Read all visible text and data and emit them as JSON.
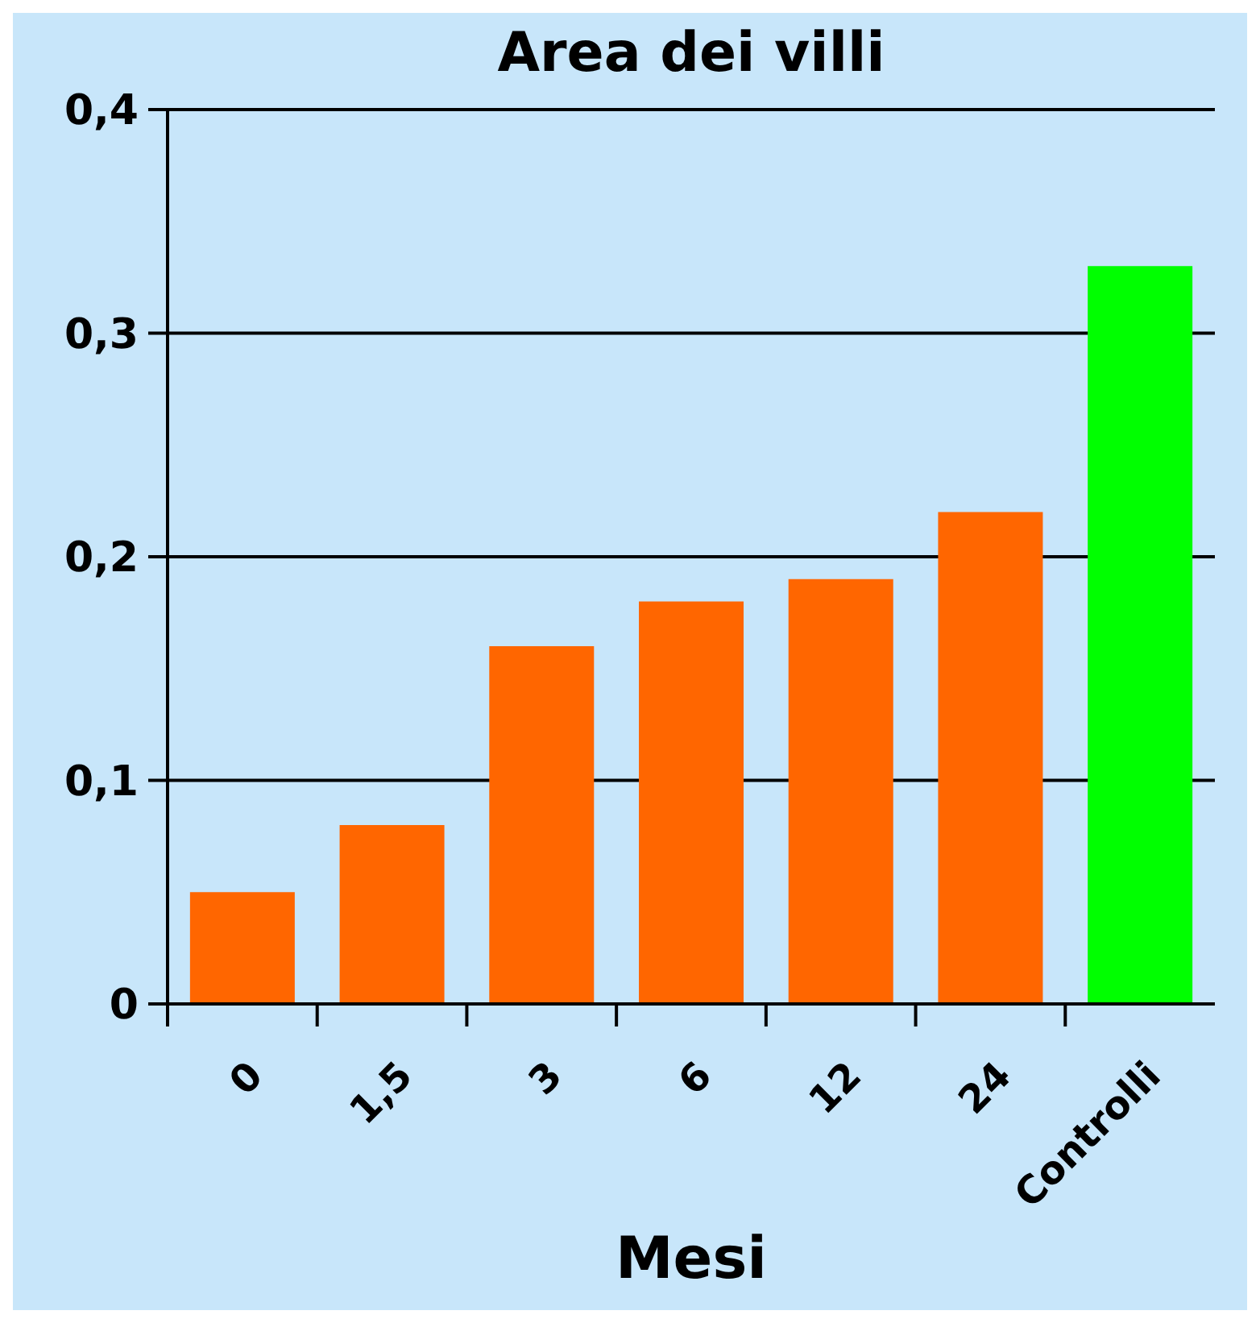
{
  "chart_data": {
    "type": "bar",
    "title": "Area dei villi",
    "xlabel": "Mesi",
    "categories": [
      "0",
      "1,5",
      "3",
      "6",
      "12",
      "24",
      "Controlli"
    ],
    "values": [
      0.05,
      0.08,
      0.16,
      0.18,
      0.19,
      0.22,
      0.33
    ],
    "colors": [
      "#ff6600",
      "#ff6600",
      "#ff6600",
      "#ff6600",
      "#ff6600",
      "#ff6600",
      "#00ff00"
    ],
    "ylim": [
      0,
      0.4
    ],
    "yticks": [
      {
        "value": 0,
        "label": "0"
      },
      {
        "value": 0.1,
        "label": "0,1"
      },
      {
        "value": 0.2,
        "label": "0,2"
      },
      {
        "value": 0.3,
        "label": "0,3"
      },
      {
        "value": 0.4,
        "label": "0,4"
      }
    ],
    "grid": "y"
  }
}
